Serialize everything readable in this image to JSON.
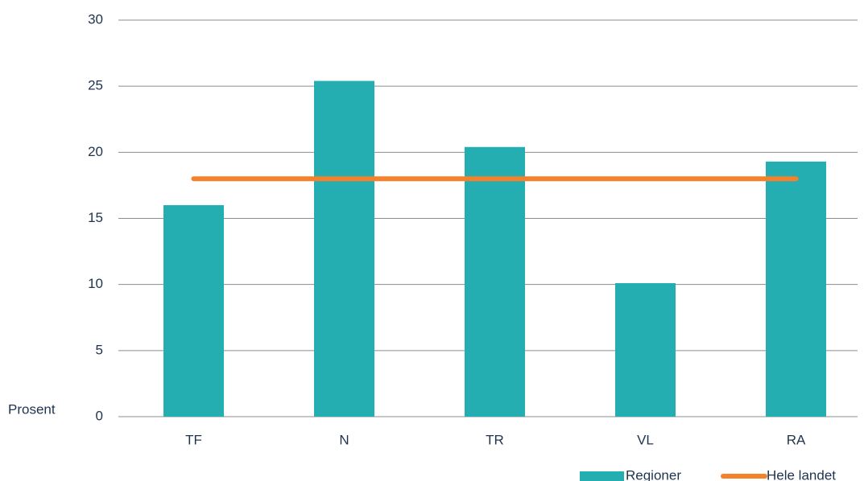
{
  "chart_data": {
    "type": "bar",
    "categories": [
      "TF",
      "N",
      "TR",
      "VL",
      "RA"
    ],
    "series": [
      {
        "name": "Regioner",
        "type": "bar",
        "color": "#25aeb2",
        "values": [
          16,
          25.4,
          20.4,
          10.1,
          19.3
        ]
      },
      {
        "name": "Hele landet",
        "type": "line",
        "color": "#f5822a",
        "values": [
          18,
          18,
          18,
          18,
          18
        ]
      }
    ],
    "y_label": "Prosent",
    "ylim": [
      0,
      30
    ],
    "yticks": [
      0,
      5,
      10,
      15,
      20,
      25,
      30
    ],
    "grid": true,
    "legend": "bottom"
  }
}
